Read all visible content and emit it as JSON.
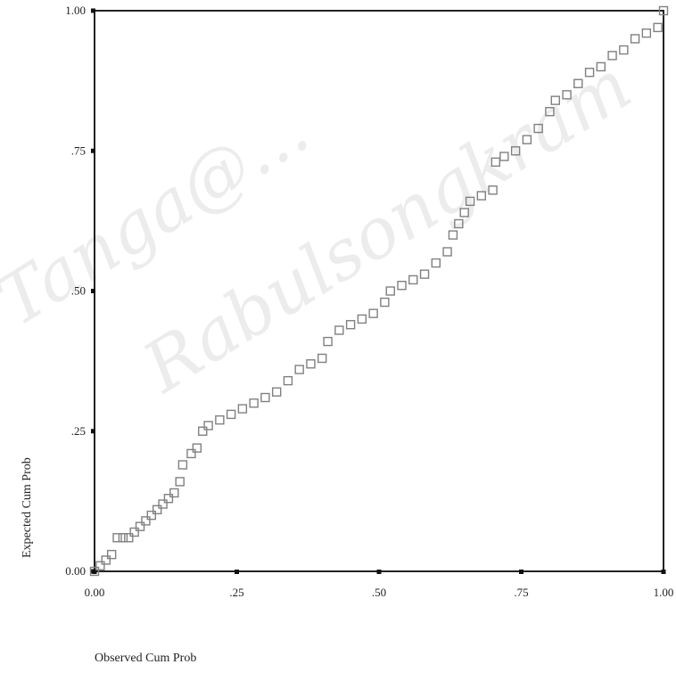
{
  "watermark": {
    "text": "Tanga@... Rabulsongkram"
  },
  "chart_data": {
    "type": "scatter",
    "title": "",
    "xlabel": "Observed Cum Prob",
    "ylabel": "Expected Cum Prob",
    "xlim": [
      0,
      1
    ],
    "ylim": [
      0,
      1
    ],
    "x_ticks": [
      "0.00",
      ".25",
      ".50",
      ".75",
      "1.00"
    ],
    "y_ticks": [
      "0.00",
      ".25",
      ".50",
      ".75",
      "1.00"
    ],
    "grid": false,
    "marker": "open-square",
    "marker_color": "#808080",
    "points": [
      [
        0.0,
        0.0
      ],
      [
        0.01,
        0.01
      ],
      [
        0.02,
        0.02
      ],
      [
        0.03,
        0.03
      ],
      [
        0.04,
        0.06
      ],
      [
        0.05,
        0.06
      ],
      [
        0.06,
        0.06
      ],
      [
        0.07,
        0.07
      ],
      [
        0.08,
        0.08
      ],
      [
        0.09,
        0.09
      ],
      [
        0.1,
        0.1
      ],
      [
        0.11,
        0.11
      ],
      [
        0.12,
        0.12
      ],
      [
        0.13,
        0.13
      ],
      [
        0.14,
        0.14
      ],
      [
        0.15,
        0.16
      ],
      [
        0.155,
        0.19
      ],
      [
        0.17,
        0.21
      ],
      [
        0.18,
        0.22
      ],
      [
        0.19,
        0.25
      ],
      [
        0.2,
        0.26
      ],
      [
        0.22,
        0.27
      ],
      [
        0.24,
        0.28
      ],
      [
        0.26,
        0.29
      ],
      [
        0.28,
        0.3
      ],
      [
        0.3,
        0.31
      ],
      [
        0.32,
        0.32
      ],
      [
        0.34,
        0.34
      ],
      [
        0.36,
        0.36
      ],
      [
        0.38,
        0.37
      ],
      [
        0.4,
        0.38
      ],
      [
        0.41,
        0.41
      ],
      [
        0.43,
        0.43
      ],
      [
        0.45,
        0.44
      ],
      [
        0.47,
        0.45
      ],
      [
        0.49,
        0.46
      ],
      [
        0.51,
        0.48
      ],
      [
        0.52,
        0.5
      ],
      [
        0.54,
        0.51
      ],
      [
        0.56,
        0.52
      ],
      [
        0.58,
        0.53
      ],
      [
        0.6,
        0.55
      ],
      [
        0.62,
        0.57
      ],
      [
        0.63,
        0.6
      ],
      [
        0.64,
        0.62
      ],
      [
        0.65,
        0.64
      ],
      [
        0.66,
        0.66
      ],
      [
        0.68,
        0.67
      ],
      [
        0.7,
        0.68
      ],
      [
        0.705,
        0.73
      ],
      [
        0.72,
        0.74
      ],
      [
        0.74,
        0.75
      ],
      [
        0.76,
        0.77
      ],
      [
        0.78,
        0.79
      ],
      [
        0.8,
        0.82
      ],
      [
        0.81,
        0.84
      ],
      [
        0.83,
        0.85
      ],
      [
        0.85,
        0.87
      ],
      [
        0.87,
        0.89
      ],
      [
        0.89,
        0.9
      ],
      [
        0.91,
        0.92
      ],
      [
        0.93,
        0.93
      ],
      [
        0.95,
        0.95
      ],
      [
        0.97,
        0.96
      ],
      [
        0.99,
        0.97
      ],
      [
        1.0,
        1.0
      ]
    ]
  }
}
